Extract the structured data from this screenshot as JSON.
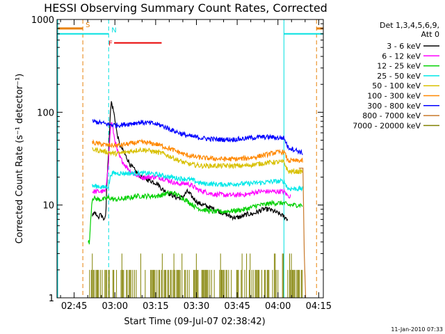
{
  "chart_data": {
    "type": "line",
    "title": "HESSI Observing Summary Count Rates, Corrected",
    "xlabel": "Start Time (09-Jul-07 02:38:42)",
    "ylabel": "Corrected Count Rate (s⁻¹ detector⁻¹)",
    "yscale": "log",
    "ylim": [
      1,
      1000
    ],
    "xlim_minutes": [
      0,
      98
    ],
    "x_tick_labels": [
      "02:45",
      "03:00",
      "03:15",
      "03:30",
      "03:45",
      "04:00",
      "04:15"
    ],
    "x_tick_minutes": [
      6.3,
      21.3,
      36.3,
      51.3,
      66.3,
      81.3,
      96.3
    ],
    "y_tick_labels": [
      "1",
      "10",
      "100",
      "1000"
    ],
    "y_tick_values": [
      1,
      10,
      100,
      1000
    ],
    "legend_header": [
      "Det 1,3,4,5,6,9,",
      "Att 0"
    ],
    "legend_position": "right",
    "timestamp": "11-Jan-2010 07:33",
    "colors": {
      "S": "#e8820a",
      "N": "#00e0e0",
      "F": "#e80000"
    },
    "flags": [
      {
        "label": "S",
        "color": "#e8820a",
        "segments": [
          [
            0,
            9.5
          ],
          [
            95.5,
            98
          ]
        ],
        "bound_lines_minutes": [
          9.5,
          95.5
        ],
        "level": 800
      },
      {
        "label": "N",
        "color": "#00e0e0",
        "segments": [
          [
            0,
            19
          ],
          [
            83.5,
            98
          ]
        ],
        "bound_lines_minutes": [
          19,
          83.5,
          98
        ],
        "level": 700
      },
      {
        "label": "F",
        "color": "#e80000",
        "segments": [
          [
            21,
            38.5
          ]
        ],
        "bound_lines_minutes": [],
        "level": 560
      }
    ],
    "series": [
      {
        "name": "3 - 6 keV",
        "color": "#000000",
        "points": [
          [
            13,
            8
          ],
          [
            14.8,
            8
          ],
          [
            15,
            7
          ],
          [
            16,
            8
          ],
          [
            17,
            7
          ],
          [
            18,
            8
          ],
          [
            19,
            35
          ],
          [
            20,
            130
          ],
          [
            21,
            95
          ],
          [
            22,
            60
          ],
          [
            23,
            45
          ],
          [
            25,
            35
          ],
          [
            27,
            27
          ],
          [
            29,
            23
          ],
          [
            31,
            20
          ],
          [
            33,
            19
          ],
          [
            35,
            18
          ],
          [
            37,
            17
          ],
          [
            38.5,
            15
          ],
          [
            40,
            14
          ],
          [
            42,
            13
          ],
          [
            44,
            12
          ],
          [
            46,
            12
          ],
          [
            48,
            14
          ],
          [
            50,
            12
          ],
          [
            52,
            10.5
          ],
          [
            54,
            10
          ],
          [
            56,
            9.5
          ],
          [
            58,
            9
          ],
          [
            60,
            8.5
          ],
          [
            62,
            8
          ],
          [
            64,
            7.5
          ],
          [
            66,
            7.3
          ],
          [
            68,
            7.5
          ],
          [
            70,
            8
          ],
          [
            72,
            8
          ],
          [
            74,
            8.5
          ],
          [
            76,
            9
          ],
          [
            78,
            9
          ],
          [
            80,
            8.5
          ],
          [
            82,
            8
          ],
          [
            83.5,
            7.5
          ],
          [
            85,
            7
          ]
        ]
      },
      {
        "name": "6 - 12 keV",
        "color": "#ff00ff",
        "points": [
          [
            13,
            14
          ],
          [
            18,
            14
          ],
          [
            19,
            30
          ],
          [
            20,
            80
          ],
          [
            21,
            55
          ],
          [
            22,
            40
          ],
          [
            23,
            33
          ],
          [
            25,
            27
          ],
          [
            27,
            23
          ],
          [
            29,
            21
          ],
          [
            31,
            20
          ],
          [
            33,
            20
          ],
          [
            35,
            20
          ],
          [
            37,
            20
          ],
          [
            38.5,
            19.5
          ],
          [
            40,
            19
          ],
          [
            42,
            18
          ],
          [
            44,
            17
          ],
          [
            46,
            17
          ],
          [
            48,
            17
          ],
          [
            50,
            16
          ],
          [
            52,
            14.5
          ],
          [
            54,
            14
          ],
          [
            56,
            13.5
          ],
          [
            58,
            13
          ],
          [
            60,
            13
          ],
          [
            62,
            12.8
          ],
          [
            64,
            12.8
          ],
          [
            66,
            12.8
          ],
          [
            68,
            13
          ],
          [
            70,
            13
          ],
          [
            72,
            13.5
          ],
          [
            74,
            14
          ],
          [
            76,
            14
          ],
          [
            78,
            14
          ],
          [
            80,
            14
          ],
          [
            82,
            14
          ],
          [
            83.5,
            14
          ],
          [
            85,
            12.5
          ],
          [
            86,
            12.5
          ]
        ]
      },
      {
        "name": "12 - 25 keV",
        "color": "#00d000",
        "points": [
          [
            11.5,
            4
          ],
          [
            12,
            4
          ],
          [
            13,
            12
          ],
          [
            15,
            11.5
          ],
          [
            17,
            11.5
          ],
          [
            19,
            12
          ],
          [
            21,
            11.5
          ],
          [
            23,
            11.5
          ],
          [
            25,
            11.8
          ],
          [
            27,
            12
          ],
          [
            29,
            12.5
          ],
          [
            31,
            12.5
          ],
          [
            33,
            12.5
          ],
          [
            35,
            12.5
          ],
          [
            37,
            12.5
          ],
          [
            39,
            13
          ],
          [
            41,
            13.5
          ],
          [
            43,
            13.5
          ],
          [
            45,
            12.5
          ],
          [
            47,
            11.5
          ],
          [
            49,
            10.5
          ],
          [
            51,
            9.5
          ],
          [
            53,
            9
          ],
          [
            55,
            8.8
          ],
          [
            57,
            8.5
          ],
          [
            59,
            8.5
          ],
          [
            61,
            8.5
          ],
          [
            63,
            8.6
          ],
          [
            65,
            8.7
          ],
          [
            67,
            8.8
          ],
          [
            69,
            9
          ],
          [
            71,
            9.3
          ],
          [
            73,
            9.8
          ],
          [
            75,
            10
          ],
          [
            77,
            10.2
          ],
          [
            79,
            10.5
          ],
          [
            81,
            10.5
          ],
          [
            83.5,
            10.5
          ],
          [
            85,
            10
          ],
          [
            87,
            10
          ],
          [
            89,
            10
          ],
          [
            90.5,
            10
          ]
        ]
      },
      {
        "name": "25 - 50 keV",
        "color": "#00e8e8",
        "points": [
          [
            13,
            16
          ],
          [
            15,
            16
          ],
          [
            17,
            15.5
          ],
          [
            19,
            16
          ],
          [
            20,
            22
          ],
          [
            22,
            22
          ],
          [
            24,
            22
          ],
          [
            26,
            22
          ],
          [
            28,
            22
          ],
          [
            30,
            22
          ],
          [
            32,
            22
          ],
          [
            34,
            22
          ],
          [
            36,
            21.5
          ],
          [
            38,
            21
          ],
          [
            40,
            20.5
          ],
          [
            42,
            20
          ],
          [
            44,
            19.5
          ],
          [
            46,
            19.3
          ],
          [
            48,
            19
          ],
          [
            50,
            18.5
          ],
          [
            52,
            17.5
          ],
          [
            54,
            17
          ],
          [
            56,
            17
          ],
          [
            58,
            16.8
          ],
          [
            60,
            16.7
          ],
          [
            62,
            16.7
          ],
          [
            64,
            16.8
          ],
          [
            66,
            17
          ],
          [
            68,
            17
          ],
          [
            70,
            17
          ],
          [
            72,
            17.2
          ],
          [
            74,
            17.4
          ],
          [
            76,
            17.5
          ],
          [
            78,
            17.8
          ],
          [
            80,
            18
          ],
          [
            82,
            18
          ],
          [
            83.5,
            18
          ],
          [
            85,
            15
          ],
          [
            87,
            15
          ],
          [
            89,
            15
          ],
          [
            90.5,
            15
          ]
        ]
      },
      {
        "name": "50 - 100 keV",
        "color": "#d8c000",
        "points": [
          [
            13,
            40
          ],
          [
            15,
            39
          ],
          [
            17,
            38
          ],
          [
            19,
            37
          ],
          [
            21,
            36
          ],
          [
            23,
            36
          ],
          [
            25,
            37
          ],
          [
            27,
            38
          ],
          [
            29,
            39
          ],
          [
            31,
            39.5
          ],
          [
            33,
            39
          ],
          [
            35,
            38
          ],
          [
            37,
            37
          ],
          [
            39,
            36
          ],
          [
            41,
            34
          ],
          [
            43,
            32
          ],
          [
            45,
            30
          ],
          [
            47,
            28.5
          ],
          [
            49,
            27.5
          ],
          [
            51,
            27
          ],
          [
            53,
            26.5
          ],
          [
            55,
            26.5
          ],
          [
            57,
            26.5
          ],
          [
            59,
            26.5
          ],
          [
            61,
            26.5
          ],
          [
            63,
            26.5
          ],
          [
            65,
            26.5
          ],
          [
            67,
            26.5
          ],
          [
            69,
            26.5
          ],
          [
            71,
            27
          ],
          [
            73,
            27.5
          ],
          [
            75,
            28
          ],
          [
            77,
            28.5
          ],
          [
            79,
            29
          ],
          [
            81,
            29
          ],
          [
            83.5,
            29
          ],
          [
            85,
            23
          ],
          [
            87,
            23
          ],
          [
            89,
            23
          ],
          [
            90.5,
            23
          ]
        ]
      },
      {
        "name": "100 - 300 keV",
        "color": "#ff8800",
        "points": [
          [
            13,
            47
          ],
          [
            15,
            46
          ],
          [
            17,
            45
          ],
          [
            19,
            44
          ],
          [
            21,
            44
          ],
          [
            23,
            44
          ],
          [
            25,
            45
          ],
          [
            27,
            46
          ],
          [
            29,
            47
          ],
          [
            31,
            47.5
          ],
          [
            33,
            47
          ],
          [
            35,
            46
          ],
          [
            37,
            45
          ],
          [
            39,
            43
          ],
          [
            41,
            41
          ],
          [
            43,
            39
          ],
          [
            45,
            37
          ],
          [
            47,
            35
          ],
          [
            49,
            34
          ],
          [
            51,
            33
          ],
          [
            53,
            32.5
          ],
          [
            55,
            32
          ],
          [
            57,
            31.8
          ],
          [
            59,
            31.5
          ],
          [
            61,
            31.3
          ],
          [
            63,
            31.3
          ],
          [
            65,
            31.3
          ],
          [
            67,
            31.5
          ],
          [
            69,
            31.8
          ],
          [
            71,
            32.3
          ],
          [
            73,
            33
          ],
          [
            75,
            34
          ],
          [
            77,
            35
          ],
          [
            79,
            36
          ],
          [
            81,
            37
          ],
          [
            83.5,
            37.5
          ],
          [
            85,
            30
          ],
          [
            87,
            30
          ],
          [
            89,
            30
          ],
          [
            90.5,
            30
          ]
        ]
      },
      {
        "name": "300 - 800 keV",
        "color": "#0000ff",
        "points": [
          [
            13,
            80
          ],
          [
            15,
            78
          ],
          [
            17,
            76
          ],
          [
            19,
            74
          ],
          [
            21,
            73
          ],
          [
            23,
            73
          ],
          [
            25,
            74
          ],
          [
            27,
            75.5
          ],
          [
            29,
            77
          ],
          [
            31,
            78
          ],
          [
            33,
            77
          ],
          [
            35,
            76
          ],
          [
            37,
            74
          ],
          [
            39,
            71
          ],
          [
            41,
            67
          ],
          [
            43,
            63
          ],
          [
            45,
            60
          ],
          [
            47,
            57
          ],
          [
            49,
            55
          ],
          [
            51,
            54
          ],
          [
            53,
            53
          ],
          [
            55,
            52
          ],
          [
            57,
            51.5
          ],
          [
            59,
            51
          ],
          [
            61,
            51
          ],
          [
            63,
            51
          ],
          [
            65,
            51
          ],
          [
            67,
            51.5
          ],
          [
            69,
            52
          ],
          [
            71,
            53
          ],
          [
            73,
            53.5
          ],
          [
            75,
            54
          ],
          [
            77,
            54
          ],
          [
            79,
            54
          ],
          [
            81,
            53
          ],
          [
            83.5,
            53
          ],
          [
            85,
            42
          ],
          [
            87,
            40
          ],
          [
            89,
            38
          ],
          [
            90.5,
            36
          ]
        ]
      },
      {
        "name": "800 - 7000 keV",
        "color": "#c87828",
        "points": [
          [
            89,
            25
          ],
          [
            90.5,
            25
          ],
          [
            91,
            3
          ],
          [
            91.5,
            1
          ]
        ]
      },
      {
        "name": "7000 - 20000 keV",
        "color": "#808000",
        "points": []
      }
    ]
  }
}
